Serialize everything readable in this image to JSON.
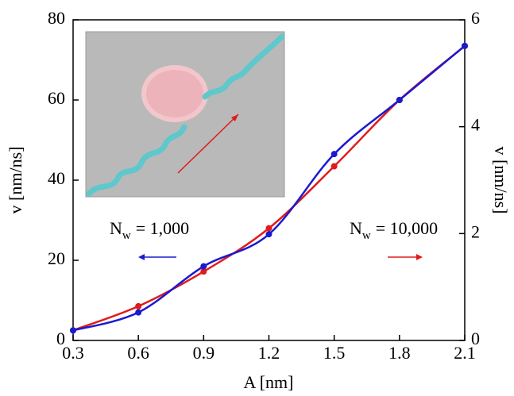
{
  "chart_data": {
    "type": "line",
    "x_label": "A [nm]",
    "y_label": "v [nm/ns]",
    "y2_label": "v [nm/ns]",
    "x": [
      0.3,
      0.6,
      0.9,
      1.2,
      1.5,
      1.8,
      2.1
    ],
    "series": [
      {
        "color": "#1a1ad0",
        "values": [
          2.5,
          7,
          18.5,
          26.5,
          46.5,
          60,
          73.5
        ]
      },
      {
        "color": "#e01b1b",
        "axis": "y2",
        "values": [
          0.19,
          0.64,
          1.29,
          2.1,
          3.26,
          4.5,
          5.51
        ]
      }
    ],
    "xlim": [
      0.3,
      2.1
    ],
    "xticks": [
      0.3,
      0.6,
      0.9,
      1.2,
      1.5,
      1.8,
      2.1
    ],
    "ylim": [
      0,
      80
    ],
    "yticks": [
      0,
      20,
      40,
      60,
      80
    ],
    "y2lim": [
      0,
      6
    ],
    "y2ticks": [
      0,
      2,
      4,
      6
    ],
    "annotations": [
      {
        "base": "N",
        "sub": "w",
        "text": "= 1,000"
      },
      {
        "base": "N",
        "sub": "w",
        "text": "= 10,000"
      }
    ]
  }
}
